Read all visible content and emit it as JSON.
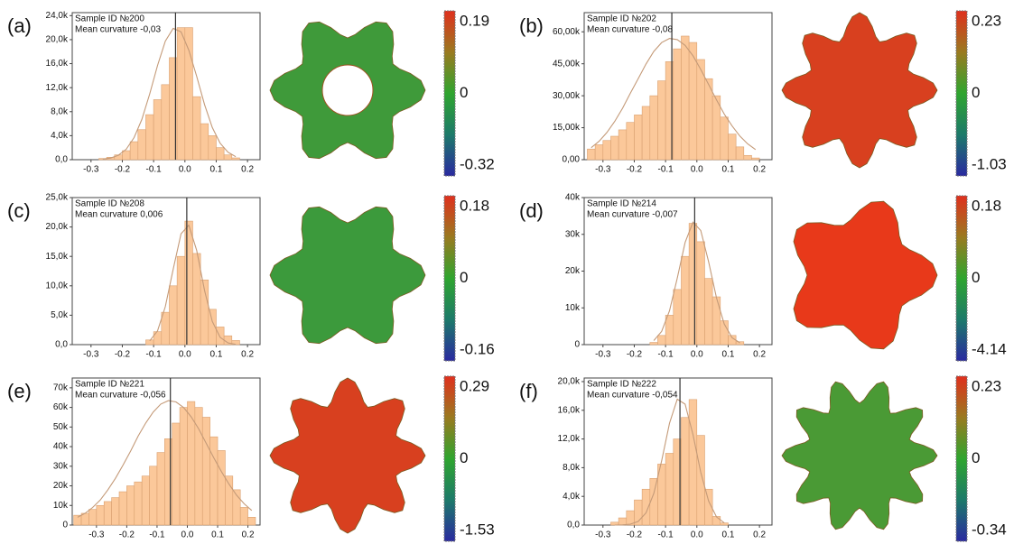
{
  "chart_data": [
    {
      "type": "histogram",
      "panel_label": "(a)",
      "annotations": [
        "Sample ID №200",
        "Mean curvature -0,03"
      ],
      "bins": [
        -0.275,
        -0.25,
        -0.225,
        -0.2,
        -0.175,
        -0.15,
        -0.125,
        -0.1,
        -0.075,
        -0.05,
        -0.025,
        0,
        0.025,
        0.05,
        0.075,
        0.1,
        0.125,
        0.15,
        0.175
      ],
      "counts": [
        200,
        400,
        800,
        1500,
        3000,
        5000,
        7500,
        10000,
        12500,
        17000,
        22000,
        22000,
        10500,
        6000,
        4000,
        2000,
        800,
        300
      ],
      "fit": [
        90,
        275,
        730,
        1740,
        3680,
        6700,
        10950,
        15700,
        19750,
        21870,
        21300,
        18250,
        13900,
        9200,
        5370,
        2750,
        1250,
        500
      ],
      "mean": -0.03,
      "xlim": [
        -0.36,
        0.24
      ],
      "xticks": [
        -0.3,
        -0.2,
        -0.1,
        {
          "value": 0,
          "label": "0.0"
        },
        0.1,
        0.2
      ],
      "ylim": [
        0,
        24500
      ],
      "yticks": [
        {
          "value": 0,
          "label": "0,0"
        },
        {
          "value": 4000,
          "label": "4,0k"
        },
        {
          "value": 8000,
          "label": "8,0k"
        },
        {
          "value": 12000,
          "label": "12,0k"
        },
        {
          "value": 16000,
          "label": "16,0k"
        },
        {
          "value": 20000,
          "label": "20,0k"
        },
        {
          "value": 24000,
          "label": "24,0k"
        }
      ],
      "colorbar_labels": [
        0.19,
        0,
        -0.32
      ],
      "color": "#fbc89a",
      "fit_color": "#c49a78"
    },
    {
      "type": "histogram",
      "panel_label": "(b)",
      "annotations": [
        "Sample ID №202",
        "Mean curvature -0,08"
      ],
      "bins": [
        -0.35,
        -0.325,
        -0.3,
        -0.275,
        -0.25,
        -0.225,
        -0.2,
        -0.175,
        -0.15,
        -0.125,
        -0.1,
        -0.075,
        -0.05,
        -0.025,
        0,
        0.025,
        0.05,
        0.075,
        0.1,
        0.125,
        0.15,
        0.175,
        0.2
      ],
      "counts": [
        5000,
        7000,
        9000,
        11000,
        14000,
        17500,
        21000,
        25000,
        30000,
        37000,
        46000,
        52000,
        58000,
        55000,
        47000,
        38000,
        30000,
        20000,
        12000,
        6000,
        2000,
        800
      ],
      "fit": [
        5650,
        8650,
        12750,
        17950,
        24150,
        31150,
        38000,
        44900,
        50800,
        54950,
        56900,
        56350,
        53650,
        48750,
        42350,
        35300,
        28100,
        21400,
        15850,
        11050,
        7400,
        4750
      ],
      "mean": -0.08,
      "xlim": [
        -0.36,
        0.24
      ],
      "xticks": [
        -0.3,
        -0.2,
        -0.1,
        {
          "value": 0,
          "label": "0.0"
        },
        0.1,
        0.2
      ],
      "ylim": [
        0,
        69000
      ],
      "yticks": [
        {
          "value": 0,
          "label": "0,00"
        },
        {
          "value": 15000,
          "label": "15,00k"
        },
        {
          "value": 30000,
          "label": "30,00k"
        },
        {
          "value": 45000,
          "label": "45,00k"
        },
        {
          "value": 60000,
          "label": "60,00k"
        }
      ],
      "colorbar_labels": [
        0.23,
        0,
        -1.03
      ],
      "color": "#fbc89a",
      "fit_color": "#c49a78"
    },
    {
      "type": "histogram",
      "panel_label": "(c)",
      "annotations": [
        "Sample ID №208",
        "Mean curvature 0,006"
      ],
      "bins": [
        -0.125,
        -0.1,
        -0.075,
        -0.05,
        -0.025,
        0,
        0.025,
        0.05,
        0.075,
        0.1,
        0.125,
        0.15,
        0.175
      ],
      "counts": [
        800,
        2200,
        5500,
        10000,
        15000,
        21000,
        15500,
        11000,
        6000,
        3000,
        1500,
        700
      ],
      "fit": [
        650,
        2350,
        6450,
        12800,
        18850,
        20300,
        16050,
        9250,
        3950,
        1250,
        290,
        50
      ],
      "mean": 0.006,
      "xlim": [
        -0.36,
        0.24
      ],
      "xticks": [
        -0.3,
        -0.2,
        -0.1,
        {
          "value": 0,
          "label": "0.0"
        },
        0.1,
        0.2
      ],
      "ylim": [
        0,
        25000
      ],
      "yticks": [
        {
          "value": 0,
          "label": "0,0"
        },
        {
          "value": 5000,
          "label": "5,0k"
        },
        {
          "value": 10000,
          "label": "10,0k"
        },
        {
          "value": 15000,
          "label": "15,0k"
        },
        {
          "value": 20000,
          "label": "20,0k"
        },
        {
          "value": 25000,
          "label": "25,0k"
        }
      ],
      "colorbar_labels": [
        0.18,
        0,
        -0.16
      ],
      "color": "#fbc89a",
      "fit_color": "#c49a78"
    },
    {
      "type": "histogram",
      "panel_label": "(d)",
      "annotations": [
        "Sample ID №214",
        "Mean curvature -0,007"
      ],
      "bins": [
        -0.15,
        -0.125,
        -0.1,
        -0.075,
        -0.05,
        -0.025,
        0,
        0.025,
        0.05,
        0.075,
        0.1,
        0.125,
        0.15
      ],
      "counts": [
        600,
        2500,
        8000,
        15000,
        24000,
        33000,
        28000,
        18000,
        13000,
        6500,
        2500,
        800
      ],
      "fit": [
        1100,
        3600,
        9200,
        18100,
        27800,
        33300,
        31050,
        22550,
        12750,
        5600,
        1900,
        500
      ],
      "mean": -0.007,
      "xlim": [
        -0.36,
        0.24
      ],
      "xticks": [
        -0.3,
        -0.2,
        -0.1,
        {
          "value": 0,
          "label": "0.0"
        },
        0.1,
        0.2
      ],
      "ylim": [
        0,
        40000
      ],
      "yticks": [
        0,
        {
          "value": 10000,
          "label": "10k"
        },
        {
          "value": 20000,
          "label": "20k"
        },
        {
          "value": 30000,
          "label": "30k"
        },
        {
          "value": 40000,
          "label": "40k"
        }
      ],
      "colorbar_labels": [
        0.18,
        0,
        -4.14
      ],
      "color": "#fbc89a",
      "fit_color": "#c49a78"
    },
    {
      "type": "histogram",
      "panel_label": "(e)",
      "annotations": [
        "Sample ID №221",
        "Mean curvature -0,056"
      ],
      "bins": [
        -0.375,
        -0.35,
        -0.325,
        -0.3,
        -0.275,
        -0.25,
        -0.225,
        -0.2,
        -0.175,
        -0.15,
        -0.125,
        -0.1,
        -0.075,
        -0.05,
        -0.025,
        0,
        0.025,
        0.05,
        0.075,
        0.1,
        0.125,
        0.15,
        0.175,
        0.2,
        0.225
      ],
      "counts": [
        5000,
        6000,
        8000,
        10000,
        12000,
        14000,
        17000,
        20000,
        22000,
        25000,
        30000,
        37000,
        44000,
        52000,
        60000,
        63000,
        60000,
        55000,
        45000,
        38000,
        25000,
        18000,
        9000,
        4000
      ],
      "fit": [
        3950,
        6050,
        8950,
        12750,
        17900,
        23800,
        30550,
        37700,
        45350,
        52050,
        57650,
        61700,
        63450,
        62800,
        59950,
        55200,
        49000,
        41600,
        34300,
        27300,
        20900,
        15250,
        10850,
        7450
      ],
      "mean": -0.056,
      "xlim": [
        -0.38,
        0.24
      ],
      "xticks": [
        -0.3,
        -0.2,
        -0.1,
        {
          "value": 0,
          "label": "0.0"
        },
        0.1,
        0.2
      ],
      "ylim": [
        0,
        75000
      ],
      "yticks": [
        0,
        {
          "value": 10000,
          "label": "10k"
        },
        {
          "value": 20000,
          "label": "20k"
        },
        {
          "value": 30000,
          "label": "30k"
        },
        {
          "value": 40000,
          "label": "40k"
        },
        {
          "value": 50000,
          "label": "50k"
        },
        {
          "value": 60000,
          "label": "60k"
        },
        {
          "value": 70000,
          "label": "70k"
        }
      ],
      "colorbar_labels": [
        0.29,
        0,
        -1.53
      ],
      "color": "#fbc89a",
      "fit_color": "#c49a78"
    },
    {
      "type": "histogram",
      "panel_label": "(f)",
      "annotations": [
        "Sample ID №222",
        "Mean curvature -0,054"
      ],
      "bins": [
        -0.275,
        -0.25,
        -0.225,
        -0.2,
        -0.175,
        -0.15,
        -0.125,
        -0.1,
        -0.075,
        -0.05,
        -0.025,
        0,
        0.025,
        0.05,
        0.075,
        0.1
      ],
      "counts": [
        400,
        1000,
        2000,
        3500,
        5000,
        6500,
        8500,
        10000,
        12000,
        15000,
        17500,
        12500,
        5000,
        1200,
        300
      ],
      "fit": [
        0,
        20,
        120,
        500,
        1700,
        4400,
        8950,
        14200,
        17550,
        16850,
        12600,
        7350,
        3350,
        1150,
        300
      ],
      "mean": -0.054,
      "xlim": [
        -0.36,
        0.24
      ],
      "xticks": [
        -0.3,
        -0.2,
        -0.1,
        {
          "value": 0,
          "label": "0.0"
        },
        0.1,
        0.2
      ],
      "ylim": [
        0,
        20500
      ],
      "yticks": [
        {
          "value": 0,
          "label": "0,0"
        },
        {
          "value": 4000,
          "label": "4,0k"
        },
        {
          "value": 8000,
          "label": "8,0k"
        },
        {
          "value": 12000,
          "label": "12,0k"
        },
        {
          "value": 16000,
          "label": "16,0k"
        },
        {
          "value": 20000,
          "label": "20,0k"
        }
      ],
      "colorbar_labels": [
        0.23,
        0,
        -0.34
      ],
      "color": "#fbc89a",
      "fit_color": "#c49a78"
    }
  ]
}
